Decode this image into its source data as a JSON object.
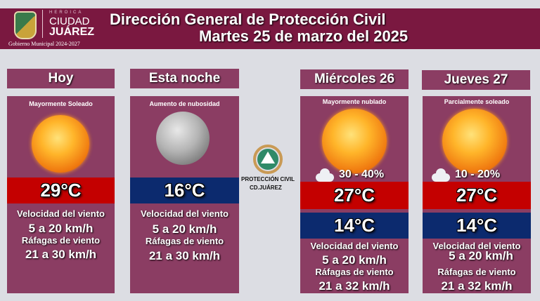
{
  "header": {
    "logo": {
      "heroica": "HEROICA",
      "ciudad": "CIUDAD",
      "juarez": "JUÁREZ",
      "gobierno": "Gobierno Municipal 2024-2027"
    },
    "title": "Dirección General de Protección Civil",
    "date": "Martes 25 de marzo del 2025"
  },
  "center_logo": {
    "line1": "PROTECCIÓN CIVIL",
    "line2": "CD.JUÁREZ"
  },
  "colors": {
    "banner": "#7a1840",
    "card": "#8b3d63",
    "max_band": "#c40000",
    "min_band": "#0c2a6e",
    "background": "#dcdde3"
  },
  "cards": [
    {
      "day": "Hoy",
      "condition": "Mayormente Soleado",
      "icon": "sun-icon",
      "temp": "29°C",
      "wind_label": "Velocidad del viento",
      "wind": "5 a 20 km/h",
      "gust_label": "Ráfagas de viento",
      "gust": "21 a 30 km/h"
    },
    {
      "day": "Esta noche",
      "condition": "Aumento de nubosidad",
      "icon": "moon-icon",
      "temp": "16°C",
      "wind_label": "Velocidad del viento",
      "wind": "5 a 20 km/h",
      "gust_label": "Ráfagas de viento",
      "gust": "21 a 30 km/h"
    },
    {
      "day": "Miércoles 26",
      "condition": "Mayormente nublado",
      "icon": "sun-icon",
      "rain_chance": "30 - 40%",
      "temp_max": "27°C",
      "temp_min": "14°C",
      "wind_label": "Velocidad del viento",
      "wind": "5 a 20 km/h",
      "gust_label": "Ráfagas de viento",
      "gust": "21 a 32 km/h"
    },
    {
      "day": "Jueves 27",
      "condition": "Parcialmente soleado",
      "icon": "sun-icon",
      "rain_chance": "10 - 20%",
      "temp_max": "27°C",
      "temp_min": "14°C",
      "wind_label": "Velocidad del viento",
      "wind": "5 a 20 km/h",
      "gust_label": "Ráfagas de viento",
      "gust": "21 a 32 km/h"
    }
  ]
}
